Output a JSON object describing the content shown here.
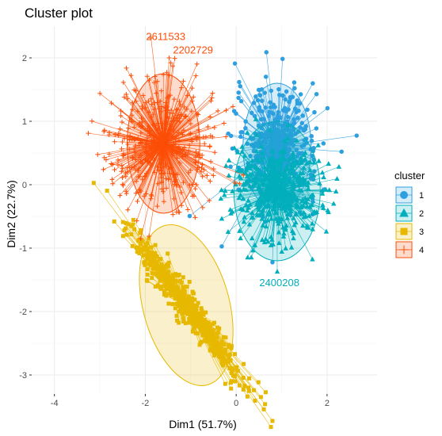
{
  "chart_data": {
    "type": "scatter",
    "title": "Cluster plot",
    "xlabel": "Dim1 (51.7%)",
    "ylabel": "Dim2 (22.7%)",
    "xlim": [
      -4.5,
      3.1
    ],
    "ylim": [
      -3.3,
      2.5
    ],
    "x_ticks": [
      -4,
      -2,
      0,
      2
    ],
    "y_ticks": [
      -3,
      -2,
      -1,
      0,
      1,
      2
    ],
    "grid": true,
    "legend_title": "cluster",
    "legend_position": "right",
    "clusters": [
      {
        "name": "1",
        "color": "#2E9FDF",
        "shape": "circle",
        "center": [
          0.9,
          0.6
        ],
        "spread": [
          0.45,
          0.45
        ],
        "ellipse_radii": [
          0.75,
          1.0
        ]
      },
      {
        "name": "2",
        "color": "#00AFBB",
        "shape": "triangle",
        "center": [
          0.9,
          -0.1
        ],
        "spread": [
          0.5,
          0.4
        ],
        "ellipse_radii": [
          0.95,
          1.1
        ]
      },
      {
        "name": "3",
        "color": "#E7B800",
        "shape": "square",
        "center": [
          -1.1,
          -1.9
        ],
        "spread": [
          0.6,
          0.6
        ],
        "ellipse_radii": [
          0.95,
          1.3
        ]
      },
      {
        "name": "4",
        "color": "#FC4E07",
        "shape": "cross",
        "center": [
          -1.6,
          0.65
        ],
        "spread": [
          0.6,
          0.5
        ],
        "ellipse_radii": [
          0.8,
          1.1
        ]
      }
    ],
    "labeled_points": [
      {
        "label": "2611533",
        "x": -1.55,
        "y": 2.28,
        "cluster": "4"
      },
      {
        "label": "2202729",
        "x": -0.95,
        "y": 2.07,
        "cluster": "4"
      },
      {
        "label": "2400208",
        "x": 0.95,
        "y": -1.6,
        "cluster": "2"
      }
    ]
  }
}
